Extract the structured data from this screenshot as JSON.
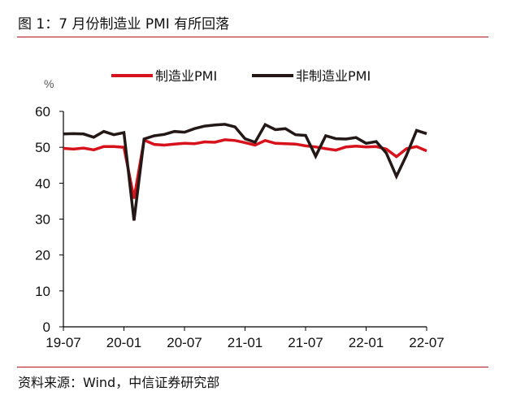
{
  "figure": {
    "title": "图 1：7 月份制造业 PMI 有所回落",
    "source": "资料来源：Wind，中信证券研究部"
  },
  "colors": {
    "rule": "#b3121c",
    "manufacturing": "#d7121c",
    "non_manufacturing": "#231815",
    "axis": "#000000"
  },
  "chart_data": {
    "type": "line",
    "title": "7 月份制造业 PMI 有所回落",
    "xlabel": "",
    "ylabel": "%",
    "ylim": [
      0,
      60
    ],
    "yticks": [
      0,
      10,
      20,
      30,
      40,
      50,
      60
    ],
    "xtick_labels": [
      "19-07",
      "20-01",
      "20-07",
      "21-01",
      "21-07",
      "22-01",
      "22-07"
    ],
    "grid": false,
    "legend_position": "top",
    "x": [
      "19-07",
      "19-08",
      "19-09",
      "19-10",
      "19-11",
      "19-12",
      "20-01",
      "20-02",
      "20-03",
      "20-04",
      "20-05",
      "20-06",
      "20-07",
      "20-08",
      "20-09",
      "20-10",
      "20-11",
      "20-12",
      "21-01",
      "21-02",
      "21-03",
      "21-04",
      "21-05",
      "21-06",
      "21-07",
      "21-08",
      "21-09",
      "21-10",
      "21-11",
      "21-12",
      "22-01",
      "22-02",
      "22-03",
      "22-04",
      "22-05",
      "22-06",
      "22-07"
    ],
    "series": [
      {
        "name": "制造业PMI",
        "color": "#d7121c",
        "values": [
          49.7,
          49.5,
          49.8,
          49.3,
          50.2,
          50.2,
          50.0,
          35.7,
          52.0,
          50.8,
          50.6,
          50.9,
          51.1,
          51.0,
          51.5,
          51.4,
          52.1,
          51.9,
          51.3,
          50.6,
          51.9,
          51.1,
          51.0,
          50.9,
          50.4,
          50.1,
          49.6,
          49.2,
          50.1,
          50.3,
          50.1,
          50.2,
          49.5,
          47.4,
          49.6,
          50.2,
          49.0
        ]
      },
      {
        "name": "非制造业PMI",
        "color": "#231815",
        "values": [
          53.7,
          53.8,
          53.7,
          52.8,
          54.4,
          53.5,
          54.1,
          29.6,
          52.3,
          53.2,
          53.6,
          54.4,
          54.2,
          55.2,
          55.9,
          56.2,
          56.4,
          55.7,
          52.4,
          51.4,
          56.3,
          54.9,
          55.2,
          53.5,
          53.3,
          47.5,
          53.2,
          52.4,
          52.3,
          52.7,
          51.1,
          51.6,
          48.4,
          41.9,
          47.8,
          54.7,
          53.8
        ]
      }
    ]
  },
  "legend": {
    "items": [
      {
        "label": "制造业PMI"
      },
      {
        "label": "非制造业PMI"
      }
    ]
  },
  "axes": {
    "unit": "%"
  }
}
